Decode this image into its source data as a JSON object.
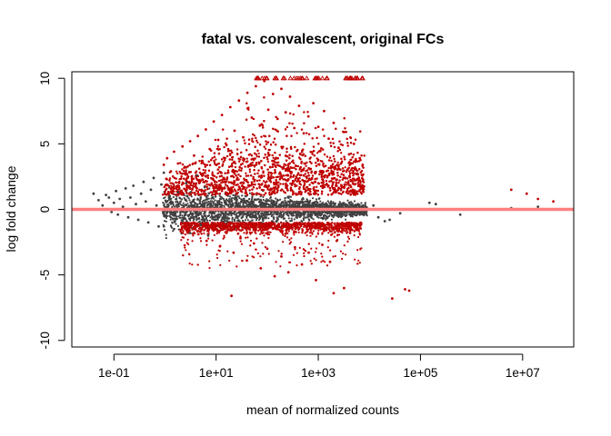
{
  "chart_data": {
    "type": "scatter",
    "title": "fatal vs. convalescent, original FCs",
    "xlabel": "mean of normalized counts",
    "ylabel": "log fold change",
    "x_scale": "log10",
    "xlim": [
      0.015,
      100000000
    ],
    "ylim": [
      -10.5,
      10.5
    ],
    "x_ticks": [
      {
        "value": 0.1,
        "label": "1e-01"
      },
      {
        "value": 10,
        "label": "1e+01"
      },
      {
        "value": 1000,
        "label": "1e+03"
      },
      {
        "value": 100000,
        "label": "1e+05"
      },
      {
        "value": 10000000,
        "label": "1e+07"
      }
    ],
    "y_ticks": [
      {
        "value": -10,
        "label": "-10"
      },
      {
        "value": -5,
        "label": "-5"
      },
      {
        "value": 0,
        "label": "0"
      },
      {
        "value": 5,
        "label": "5"
      },
      {
        "value": 10,
        "label": "10"
      }
    ],
    "reference_line": {
      "y": 0,
      "color": "#ff7f7f"
    },
    "colors": {
      "not_significant": "#404040",
      "significant": "#c00000"
    },
    "clipped_marker": "triangle at y = 10 for fold changes beyond the axis limit",
    "series": [
      {
        "color": "#404040",
        "points": [
          [
            0.04,
            1.2
          ],
          [
            0.05,
            0.7
          ],
          [
            0.06,
            0.3
          ],
          [
            0.07,
            1.1
          ],
          [
            0.08,
            0.9
          ],
          [
            0.09,
            -0.2
          ],
          [
            0.1,
            0.5
          ],
          [
            0.11,
            1.4
          ],
          [
            0.12,
            -0.4
          ],
          [
            0.13,
            0.8
          ],
          [
            0.15,
            0.2
          ],
          [
            0.17,
            1.6
          ],
          [
            0.19,
            -0.6
          ],
          [
            0.21,
            0.9
          ],
          [
            0.24,
            1.8
          ],
          [
            0.27,
            0.4
          ],
          [
            0.3,
            -0.8
          ],
          [
            0.34,
            1.2
          ],
          [
            0.38,
            2.1
          ],
          [
            0.42,
            0.6
          ],
          [
            0.47,
            -1.0
          ],
          [
            0.53,
            1.5
          ],
          [
            0.6,
            2.4
          ],
          [
            0.68,
            0.3
          ],
          [
            0.75,
            -1.3
          ],
          [
            0.85,
            1.9
          ],
          [
            0.95,
            2.8
          ],
          [
            1.05,
            -0.5
          ],
          [
            1.2,
            1.0
          ],
          [
            1.5,
            -1.5
          ],
          [
            1.8,
            1.3
          ],
          [
            2.2,
            -0.9
          ],
          [
            2.6,
            2.0
          ],
          [
            3.1,
            -1.8
          ],
          [
            3.6,
            0.7
          ],
          [
            4.2,
            2.6
          ],
          [
            5.0,
            -1.2
          ],
          [
            6.0,
            1.7
          ],
          [
            7.0,
            -2.0
          ],
          [
            8.5,
            0.9
          ],
          [
            12000,
            0.3
          ],
          [
            15000,
            -0.6
          ],
          [
            20000,
            -0.9
          ],
          [
            25000,
            -0.8
          ],
          [
            40000,
            -0.3
          ],
          [
            150000,
            0.5
          ],
          [
            200000,
            0.4
          ],
          [
            600000,
            -0.4
          ],
          [
            2000000,
            0.0
          ],
          [
            6000000,
            0.1
          ],
          [
            20000000,
            0.2
          ]
        ]
      },
      {
        "color": "#c00000",
        "points": [
          [
            0.95,
            3.4
          ],
          [
            1.1,
            3.9
          ],
          [
            1.3,
            2.9
          ],
          [
            1.5,
            4.4
          ],
          [
            1.8,
            3.5
          ],
          [
            2.2,
            4.8
          ],
          [
            2.6,
            3.2
          ],
          [
            3.1,
            5.2
          ],
          [
            3.7,
            4.1
          ],
          [
            4.4,
            5.6
          ],
          [
            5.3,
            3.7
          ],
          [
            6.3,
            6.1
          ],
          [
            7.5,
            4.6
          ],
          [
            9.0,
            6.7
          ],
          [
            11,
            5.3
          ],
          [
            13,
            7.2
          ],
          [
            16,
            4.9
          ],
          [
            19,
            7.8
          ],
          [
            23,
            6.0
          ],
          [
            28,
            8.3
          ],
          [
            34,
            5.5
          ],
          [
            41,
            8.9
          ],
          [
            50,
            7.0
          ],
          [
            60,
            9.4
          ],
          [
            72,
            6.4
          ],
          [
            88,
            9.8
          ],
          [
            105,
            7.6
          ],
          [
            130,
            8.8
          ],
          [
            160,
            6.9
          ],
          [
            190,
            9.2
          ],
          [
            230,
            7.4
          ],
          [
            280,
            8.6
          ],
          [
            340,
            6.2
          ],
          [
            420,
            7.9
          ],
          [
            520,
            5.8
          ],
          [
            640,
            7.1
          ],
          [
            800,
            8.1
          ],
          [
            1000,
            6.3
          ],
          [
            1300,
            7.5
          ],
          [
            1600,
            5.4
          ],
          [
            2000,
            6.6
          ],
          [
            2500,
            4.7
          ],
          [
            3200,
            5.9
          ],
          [
            4000,
            4.2
          ],
          [
            5000,
            5.0
          ],
          [
            6500,
            3.9
          ],
          [
            3.0,
            -1.4
          ],
          [
            4.5,
            -1.9
          ],
          [
            6.5,
            -2.4
          ],
          [
            9.0,
            -1.6
          ],
          [
            12,
            -2.8
          ],
          [
            16,
            -1.8
          ],
          [
            22,
            -3.3
          ],
          [
            30,
            -2.2
          ],
          [
            40,
            -3.9
          ],
          [
            55,
            -2.6
          ],
          [
            75,
            -4.5
          ],
          [
            100,
            -3.0
          ],
          [
            140,
            -5.1
          ],
          [
            190,
            -3.6
          ],
          [
            260,
            -4.8
          ],
          [
            350,
            -2.9
          ],
          [
            480,
            -4.2
          ],
          [
            650,
            -3.3
          ],
          [
            900,
            -5.4
          ],
          [
            1200,
            -2.7
          ],
          [
            1700,
            -4.0
          ],
          [
            2300,
            -2.4
          ],
          [
            3200,
            -6.0
          ],
          [
            4200,
            -1.8
          ],
          [
            5500,
            -1.5
          ],
          [
            20,
            -6.6
          ],
          [
            2000,
            -6.4
          ],
          [
            28000,
            -6.8
          ],
          [
            50000,
            -6.1
          ],
          [
            60000,
            -6.2
          ],
          [
            6000000,
            1.5
          ],
          [
            12000000,
            1.2
          ],
          [
            20000000,
            0.8
          ],
          [
            40000000,
            0.6
          ]
        ]
      }
    ]
  }
}
